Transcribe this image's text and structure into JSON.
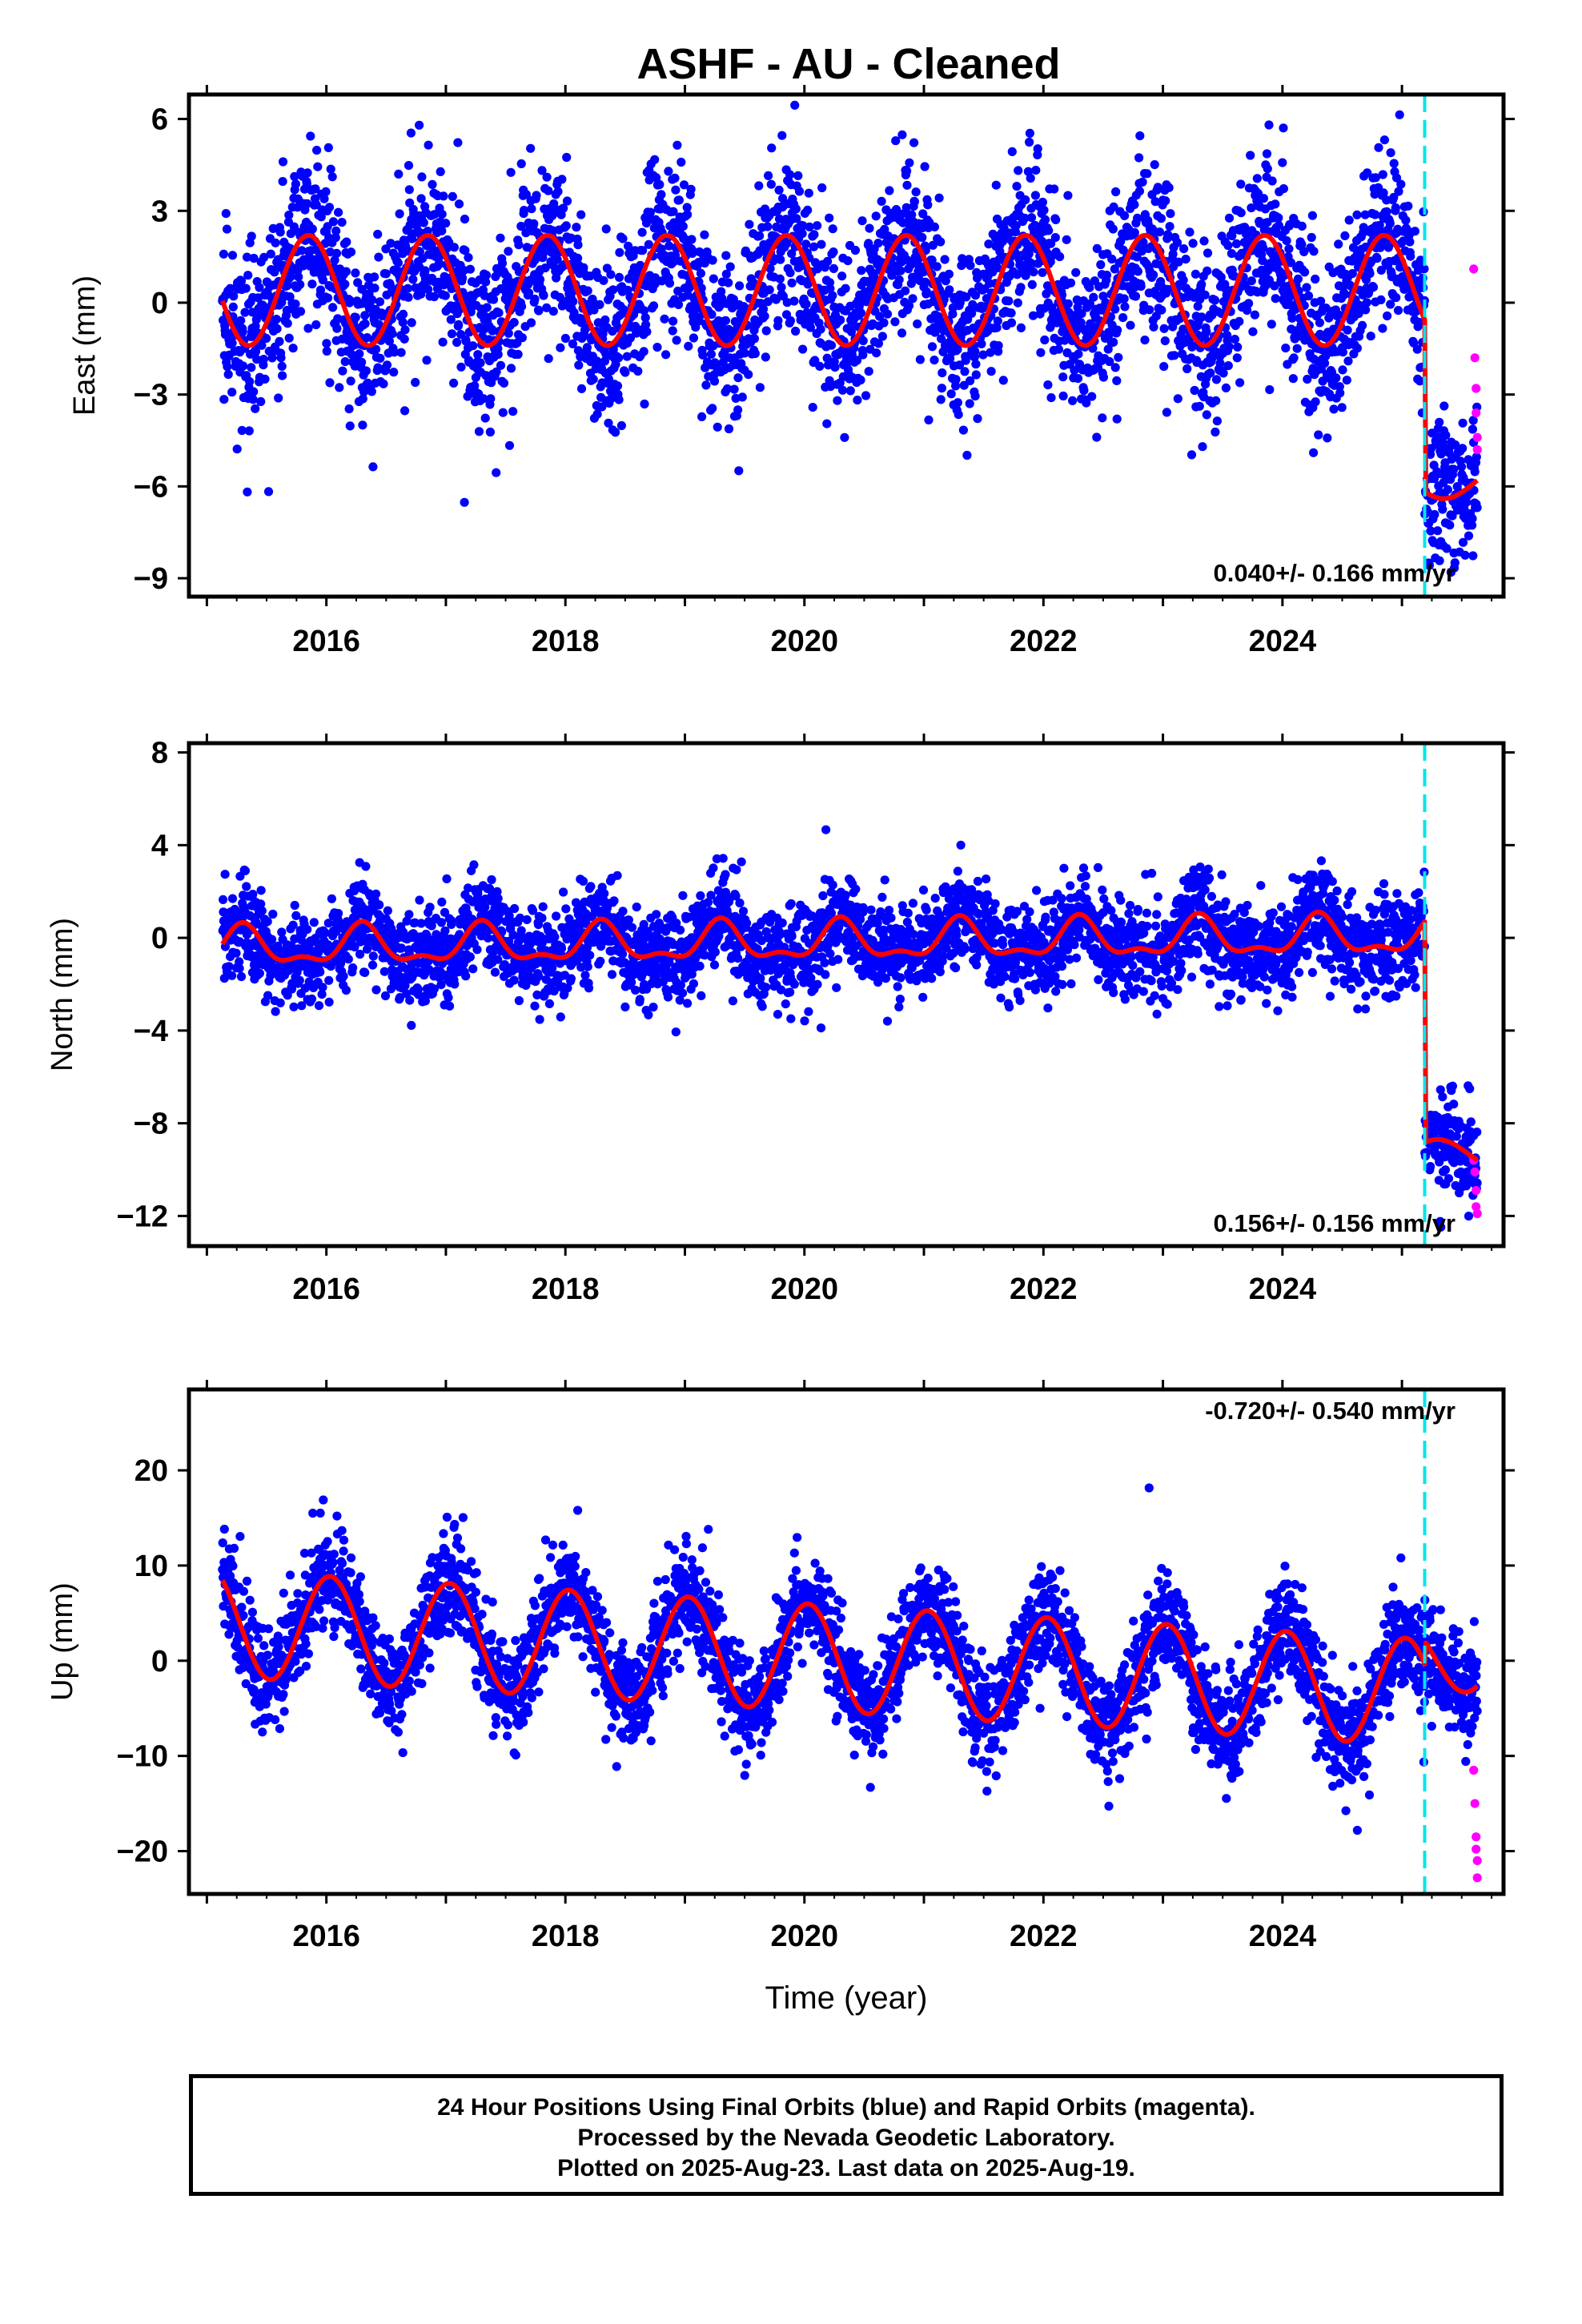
{
  "title": "ASHF  - AU - Cleaned",
  "colors": {
    "final": "#0000ff",
    "rapid": "#ff00ff",
    "model": "#ff0000",
    "event": "#00e5ee"
  },
  "footer": {
    "line1": "24 Hour Positions Using Final Orbits (blue) and Rapid Orbits (magenta).",
    "line2": "Processed by the Nevada Geodetic Laboratory.",
    "line3": "Plotted on 2025-Aug-23. Last data on 2025-Aug-19."
  },
  "chart_data": [
    {
      "type": "scatter",
      "ylabel": "East (mm)",
      "xlabel": "",
      "xlim": [
        2014.85,
        2025.85
      ],
      "ylim": [
        -9.6,
        6.8
      ],
      "xticks": [
        2016,
        2018,
        2020,
        2022,
        2024
      ],
      "yticks": [
        6,
        3,
        0,
        -3,
        -6,
        -9
      ],
      "ytick_labels": [
        "6",
        "3",
        "0",
        "−3",
        "−6",
        "−9"
      ],
      "rate_text": "0.040+/- 0.166 mm/yr",
      "event_x": 2025.19,
      "model": {
        "offset_before": 0.4,
        "amplitude": 1.8,
        "peak_phase": 0.85,
        "offset_after": -5.9,
        "after_amplitude": 0.5,
        "trend": 0.04
      },
      "scatter": 3.6,
      "rapid_points": {
        "x": [
          2025.6,
          2025.61,
          2025.62,
          2025.62,
          2025.63,
          2025.63
        ],
        "y": [
          1.1,
          -1.8,
          -2.8,
          -3.6,
          -4.4,
          -4.8
        ]
      }
    },
    {
      "type": "scatter",
      "ylabel": "North (mm)",
      "xlabel": "",
      "xlim": [
        2014.85,
        2025.85
      ],
      "ylim": [
        -13.3,
        8.4
      ],
      "xticks": [
        2016,
        2018,
        2020,
        2022,
        2024
      ],
      "yticks": [
        8,
        4,
        0,
        -4,
        -8,
        -12
      ],
      "ytick_labels": [
        "8",
        "4",
        "0",
        "−4",
        "−8",
        "−12"
      ],
      "rate_text": "0.156+/- 0.156 mm/yr",
      "event_x": 2025.19,
      "model": {
        "offset_before": -0.45,
        "amplitude": 0.75,
        "peak_phase": 0.3,
        "semiannual": true,
        "offset_after": -9.3,
        "after_amplitude": 0.6,
        "trend": 0.156
      },
      "scatter": 2.6,
      "rapid_points": {
        "x": [
          2025.6,
          2025.61,
          2025.62,
          2025.62,
          2025.63
        ],
        "y": [
          -9.6,
          -10.1,
          -10.9,
          -11.6,
          -11.9
        ]
      }
    },
    {
      "type": "scatter",
      "ylabel": "Up (mm)",
      "xlabel": "Time (year)",
      "xlim": [
        2014.85,
        2025.85
      ],
      "ylim": [
        -24.5,
        28.5
      ],
      "xticks": [
        2016,
        2018,
        2020,
        2022,
        2024
      ],
      "yticks": [
        20,
        10,
        0,
        -10,
        -20
      ],
      "ytick_labels": [
        "20",
        "10",
        "0",
        "−10",
        "−20"
      ],
      "rate_text": "-0.720+/- 0.540 mm/yr",
      "event_x": 2025.19,
      "model": {
        "offset_before": 4.0,
        "amplitude": 5.6,
        "peak_phase": 0.03,
        "offset_after": 0.2,
        "after_amplitude": 3.5,
        "trend": -0.72
      },
      "scatter": 7.0,
      "rapid_points": {
        "x": [
          2025.6,
          2025.61,
          2025.62,
          2025.62,
          2025.63,
          2025.63
        ],
        "y": [
          -11.5,
          -15.0,
          -18.5,
          -19.8,
          -21.0,
          -22.8
        ]
      }
    }
  ]
}
